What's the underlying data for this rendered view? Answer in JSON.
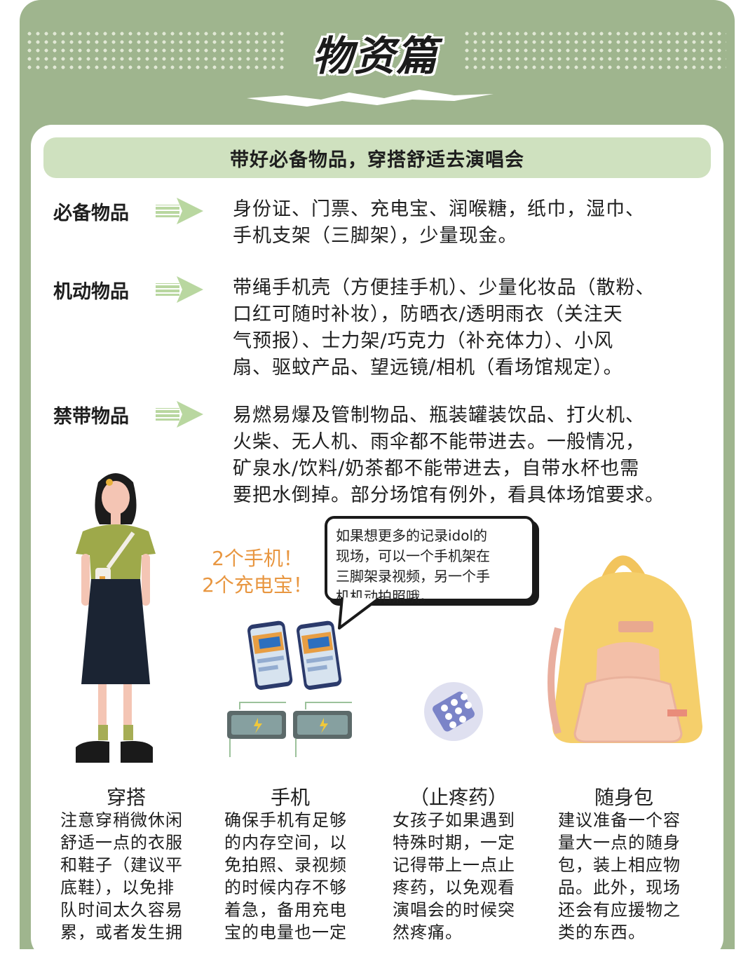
{
  "header": {
    "title": "物资篇"
  },
  "banner": {
    "text": "带好必备物品，穿搭舒适去演唱会"
  },
  "rows": [
    {
      "label": "必备物品",
      "text": [
        "身份证、门票、充电宝、润喉糖，纸巾，湿巾、",
        "手机支架（三脚架），少量现金。"
      ]
    },
    {
      "label": "机动物品",
      "text": [
        "带绳手机壳（方便挂手机）、少量化妆品（散粉、",
        "口红可随时补妆），防晒衣/透明雨衣（关注天",
        "气预报）、士力架/巧克力（补充体力）、小风",
        "扇、驱蚊产品、望远镜/相机（看场馆规定）。"
      ]
    },
    {
      "label": "禁带物品",
      "text": [
        "易燃易爆及管制物品、瓶装罐装饮品、打火机、",
        "火柴、无人机、雨伞都不能带进去。一般情况，",
        "矿泉水/饮料/奶茶都不能带进去，自带水杯也需",
        "要把水倒掉。部分场馆有例外，看具体场馆要求。"
      ]
    }
  ],
  "callout": {
    "line1": "2个手机！",
    "line2": "2个充电宝！"
  },
  "speech": {
    "text": [
      "如果想更多的记录idol的",
      "现场，可以一个手机架在",
      "三脚架录视频，另一个手",
      "机机动拍照哦。"
    ]
  },
  "columns": [
    {
      "title": "穿搭",
      "text": [
        "注意穿稍微休闲",
        "舒适一点的衣服",
        "和鞋子（建议平",
        "底鞋），以免排",
        "队时间太久容易",
        "累，或者发生拥"
      ]
    },
    {
      "title": "手机",
      "text": [
        "确保手机有足够",
        "的内存空间，以",
        "免拍照、录视频",
        "的时候内存不够",
        "着急，备用充电",
        "宝的电量也一定"
      ]
    },
    {
      "title": "（止疼药）",
      "text": [
        "女孩子如果遇到",
        "特殊时期，一定",
        "记得带上一点止",
        "疼药，以免观看",
        "演唱会的时候突",
        "然疼痛。"
      ]
    },
    {
      "title": "随身包",
      "text": [
        "建议准备一个容",
        "量大一点的随身",
        "包，装上相应物",
        "品。此外，现场",
        "还会有应援物之",
        "类的东西。"
      ]
    }
  ],
  "colors": {
    "frame": "#9fb58e",
    "banner": "#cfe1bf",
    "accent_orange": "#e89640"
  }
}
